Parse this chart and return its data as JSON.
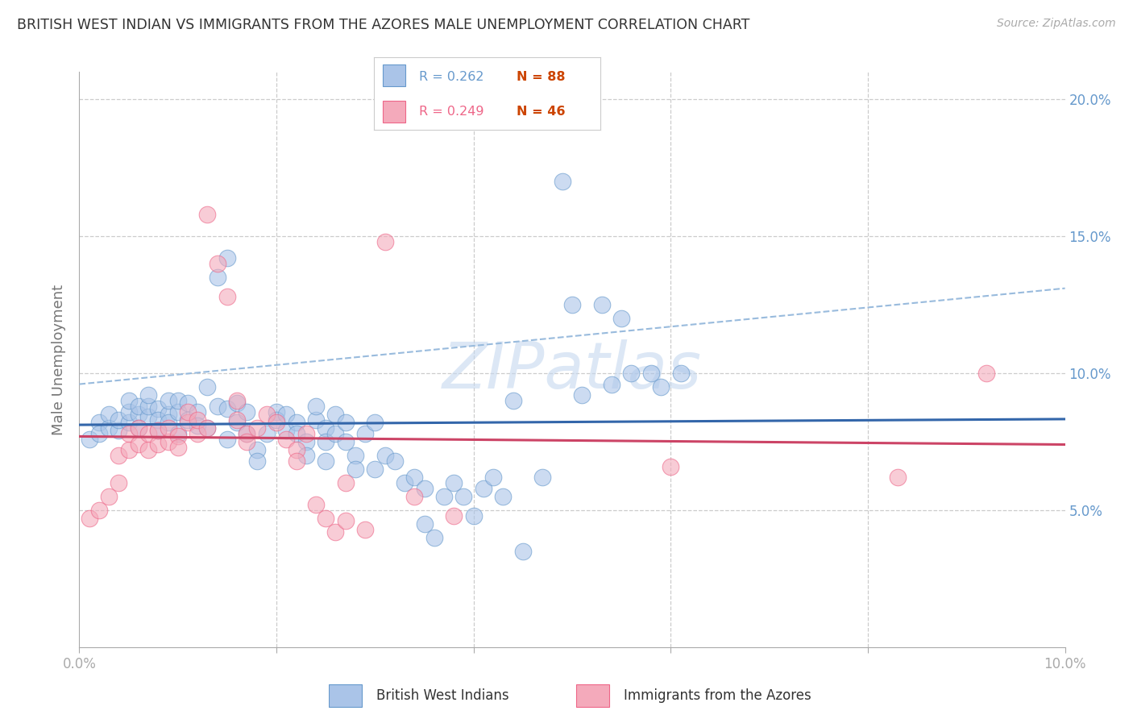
{
  "title": "BRITISH WEST INDIAN VS IMMIGRANTS FROM THE AZORES MALE UNEMPLOYMENT CORRELATION CHART",
  "source": "Source: ZipAtlas.com",
  "ylabel": "Male Unemployment",
  "xlim": [
    0.0,
    0.1
  ],
  "ylim": [
    0.0,
    0.21
  ],
  "xticks": [
    0.0,
    0.02,
    0.04,
    0.06,
    0.08,
    0.1
  ],
  "xtick_labels": [
    "0.0%",
    "",
    "",
    "",
    "",
    "10.0%"
  ],
  "yticks_right": [
    0.0,
    0.05,
    0.1,
    0.15,
    0.2
  ],
  "ytick_labels_right": [
    "",
    "5.0%",
    "10.0%",
    "15.0%",
    "20.0%"
  ],
  "legend_color1": "#aac4e8",
  "legend_color2": "#f4aabb",
  "legend_edge1": "#6699cc",
  "legend_edge2": "#ee6688",
  "scatter_blue": [
    [
      0.001,
      0.076
    ],
    [
      0.002,
      0.082
    ],
    [
      0.002,
      0.078
    ],
    [
      0.003,
      0.08
    ],
    [
      0.003,
      0.085
    ],
    [
      0.004,
      0.079
    ],
    [
      0.004,
      0.083
    ],
    [
      0.005,
      0.082
    ],
    [
      0.005,
      0.086
    ],
    [
      0.005,
      0.09
    ],
    [
      0.006,
      0.085
    ],
    [
      0.006,
      0.088
    ],
    [
      0.006,
      0.08
    ],
    [
      0.007,
      0.084
    ],
    [
      0.007,
      0.088
    ],
    [
      0.007,
      0.092
    ],
    [
      0.008,
      0.087
    ],
    [
      0.008,
      0.083
    ],
    [
      0.008,
      0.079
    ],
    [
      0.009,
      0.085
    ],
    [
      0.009,
      0.09
    ],
    [
      0.009,
      0.082
    ],
    [
      0.01,
      0.086
    ],
    [
      0.01,
      0.09
    ],
    [
      0.01,
      0.078
    ],
    [
      0.011,
      0.089
    ],
    [
      0.011,
      0.083
    ],
    [
      0.012,
      0.086
    ],
    [
      0.012,
      0.081
    ],
    [
      0.013,
      0.08
    ],
    [
      0.013,
      0.095
    ],
    [
      0.014,
      0.088
    ],
    [
      0.014,
      0.135
    ],
    [
      0.015,
      0.142
    ],
    [
      0.015,
      0.087
    ],
    [
      0.015,
      0.076
    ],
    [
      0.016,
      0.082
    ],
    [
      0.016,
      0.089
    ],
    [
      0.017,
      0.086
    ],
    [
      0.017,
      0.078
    ],
    [
      0.018,
      0.072
    ],
    [
      0.018,
      0.068
    ],
    [
      0.019,
      0.078
    ],
    [
      0.02,
      0.086
    ],
    [
      0.02,
      0.083
    ],
    [
      0.021,
      0.085
    ],
    [
      0.021,
      0.079
    ],
    [
      0.022,
      0.082
    ],
    [
      0.022,
      0.078
    ],
    [
      0.023,
      0.075
    ],
    [
      0.023,
      0.07
    ],
    [
      0.024,
      0.083
    ],
    [
      0.024,
      0.088
    ],
    [
      0.025,
      0.08
    ],
    [
      0.025,
      0.075
    ],
    [
      0.025,
      0.068
    ],
    [
      0.026,
      0.085
    ],
    [
      0.026,
      0.078
    ],
    [
      0.027,
      0.082
    ],
    [
      0.027,
      0.075
    ],
    [
      0.028,
      0.07
    ],
    [
      0.028,
      0.065
    ],
    [
      0.029,
      0.078
    ],
    [
      0.03,
      0.082
    ],
    [
      0.03,
      0.065
    ],
    [
      0.031,
      0.07
    ],
    [
      0.032,
      0.068
    ],
    [
      0.033,
      0.06
    ],
    [
      0.034,
      0.062
    ],
    [
      0.035,
      0.058
    ],
    [
      0.035,
      0.045
    ],
    [
      0.036,
      0.04
    ],
    [
      0.037,
      0.055
    ],
    [
      0.038,
      0.06
    ],
    [
      0.039,
      0.055
    ],
    [
      0.04,
      0.048
    ],
    [
      0.041,
      0.058
    ],
    [
      0.042,
      0.062
    ],
    [
      0.043,
      0.055
    ],
    [
      0.044,
      0.09
    ],
    [
      0.045,
      0.035
    ],
    [
      0.047,
      0.062
    ],
    [
      0.049,
      0.17
    ],
    [
      0.05,
      0.125
    ],
    [
      0.051,
      0.092
    ],
    [
      0.053,
      0.125
    ],
    [
      0.054,
      0.096
    ],
    [
      0.055,
      0.12
    ],
    [
      0.056,
      0.1
    ],
    [
      0.058,
      0.1
    ],
    [
      0.059,
      0.095
    ],
    [
      0.061,
      0.1
    ]
  ],
  "scatter_pink": [
    [
      0.001,
      0.047
    ],
    [
      0.002,
      0.05
    ],
    [
      0.003,
      0.055
    ],
    [
      0.004,
      0.06
    ],
    [
      0.004,
      0.07
    ],
    [
      0.005,
      0.072
    ],
    [
      0.005,
      0.078
    ],
    [
      0.006,
      0.074
    ],
    [
      0.006,
      0.08
    ],
    [
      0.007,
      0.072
    ],
    [
      0.007,
      0.078
    ],
    [
      0.008,
      0.074
    ],
    [
      0.008,
      0.079
    ],
    [
      0.009,
      0.075
    ],
    [
      0.009,
      0.08
    ],
    [
      0.01,
      0.077
    ],
    [
      0.01,
      0.073
    ],
    [
      0.011,
      0.082
    ],
    [
      0.011,
      0.086
    ],
    [
      0.012,
      0.078
    ],
    [
      0.012,
      0.083
    ],
    [
      0.013,
      0.08
    ],
    [
      0.013,
      0.158
    ],
    [
      0.014,
      0.14
    ],
    [
      0.015,
      0.128
    ],
    [
      0.016,
      0.09
    ],
    [
      0.016,
      0.083
    ],
    [
      0.017,
      0.078
    ],
    [
      0.017,
      0.075
    ],
    [
      0.018,
      0.08
    ],
    [
      0.019,
      0.085
    ],
    [
      0.02,
      0.082
    ],
    [
      0.021,
      0.076
    ],
    [
      0.022,
      0.072
    ],
    [
      0.022,
      0.068
    ],
    [
      0.023,
      0.078
    ],
    [
      0.024,
      0.052
    ],
    [
      0.025,
      0.047
    ],
    [
      0.026,
      0.042
    ],
    [
      0.027,
      0.06
    ],
    [
      0.027,
      0.046
    ],
    [
      0.029,
      0.043
    ],
    [
      0.031,
      0.148
    ],
    [
      0.034,
      0.055
    ],
    [
      0.038,
      0.048
    ],
    [
      0.06,
      0.066
    ],
    [
      0.083,
      0.062
    ],
    [
      0.092,
      0.1
    ]
  ],
  "blue_line_color": "#3366aa",
  "pink_line_color": "#cc4466",
  "blue_dash_color": "#99bbdd",
  "watermark": "ZIPatlas",
  "background_color": "#ffffff",
  "grid_color": "#cccccc",
  "title_color": "#333333",
  "axis_label_color": "#6699cc",
  "ylabel_color": "#777777",
  "bottom_legend_label1": "British West Indians",
  "bottom_legend_label2": "Immigrants from the Azores"
}
